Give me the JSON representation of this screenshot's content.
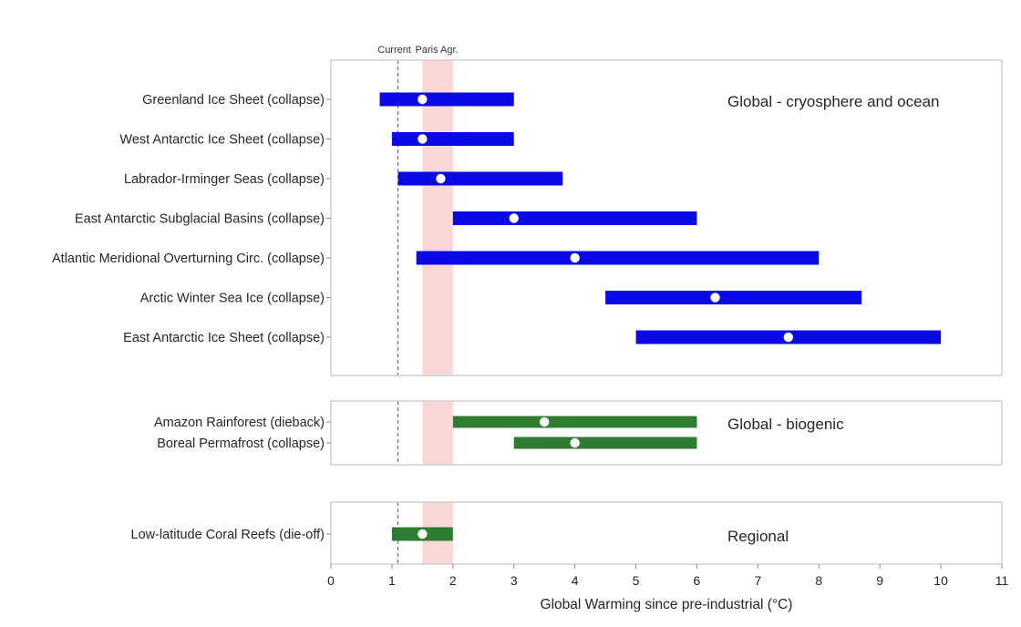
{
  "chart_data": {
    "type": "range-bar",
    "xlabel": "Global Warming since pre-industrial (°C)",
    "xlim": [
      0,
      11
    ],
    "xticks": [
      0,
      1,
      2,
      3,
      4,
      5,
      6,
      7,
      8,
      9,
      10,
      11
    ],
    "reference_lines": [
      {
        "label": "Current",
        "x": 1.1
      }
    ],
    "reference_bands": [
      {
        "label": "Paris Agr.",
        "x_range": [
          1.5,
          2.0
        ],
        "color": "#fcd7d7"
      }
    ],
    "colors": {
      "cryosphere": "#0a0ae6",
      "biogenic": "#2e7d32"
    },
    "panels": [
      {
        "title": "Global - cryosphere and ocean",
        "items": [
          {
            "label": "Greenland Ice Sheet (collapse)",
            "min": 0.8,
            "max": 3.0,
            "central": 1.5,
            "color": "#0a0ae6"
          },
          {
            "label": "West Antarctic Ice Sheet (collapse)",
            "min": 1.0,
            "max": 3.0,
            "central": 1.5,
            "color": "#0a0ae6"
          },
          {
            "label": "Labrador-Irminger Seas (collapse)",
            "min": 1.1,
            "max": 3.8,
            "central": 1.8,
            "color": "#0a0ae6"
          },
          {
            "label": "East Antarctic Subglacial Basins (collapse)",
            "min": 2.0,
            "max": 6.0,
            "central": 3.0,
            "color": "#0a0ae6"
          },
          {
            "label": "Atlantic Meridional Overturning Circ. (collapse)",
            "min": 1.4,
            "max": 8.0,
            "central": 4.0,
            "color": "#0a0ae6"
          },
          {
            "label": "Arctic Winter Sea Ice (collapse)",
            "min": 4.5,
            "max": 8.7,
            "central": 6.3,
            "color": "#0a0ae6"
          },
          {
            "label": "East Antarctic Ice Sheet (collapse)",
            "min": 5.0,
            "max": 10.0,
            "central": 7.5,
            "color": "#0a0ae6"
          }
        ]
      },
      {
        "title": "Global - biogenic",
        "items": [
          {
            "label": "Amazon Rainforest (dieback)",
            "min": 2.0,
            "max": 6.0,
            "central": 3.5,
            "color": "#2e7d32"
          },
          {
            "label": "Boreal Permafrost (collapse)",
            "min": 3.0,
            "max": 6.0,
            "central": 4.0,
            "color": "#2e7d32"
          }
        ]
      },
      {
        "title": "Regional",
        "items": [
          {
            "label": "Low-latitude Coral Reefs (die-off)",
            "min": 1.0,
            "max": 2.0,
            "central": 1.5,
            "color": "#2e7d32"
          }
        ]
      }
    ]
  }
}
